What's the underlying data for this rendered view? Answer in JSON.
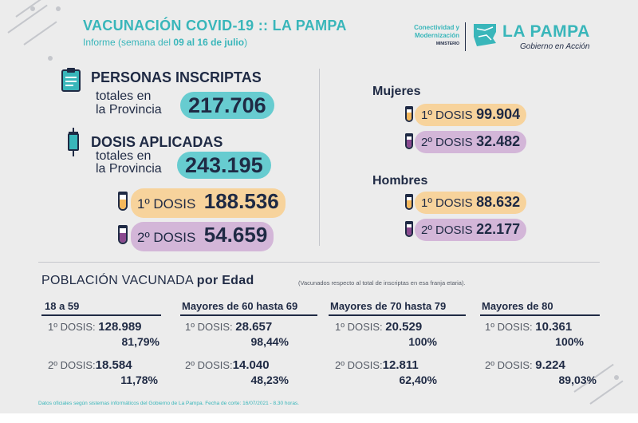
{
  "header": {
    "title": "VACUNACIÓN COVID-19 :: LA PAMPA",
    "subtitle_prefix": "Informe (semana del ",
    "subtitle_bold": "09 al 16 de julio",
    "subtitle_suffix": ")"
  },
  "logo": {
    "ministry_line1": "Conectividad y",
    "ministry_line2": "Modernización",
    "ministry_line3": "MINISTERIO",
    "brand": "LA PAMPA",
    "tagline": "Gobierno en Acción"
  },
  "inscriptas": {
    "title": "PERSONAS INSCRIPTAS",
    "line1": "totales en",
    "line2": "la Provincia",
    "value": "217.706"
  },
  "dosis": {
    "title": "DOSIS APLICADAS",
    "line1": "totales en",
    "line2": "la Provincia",
    "value": "243.195",
    "first_label": "1º DOSIS",
    "first_value": "188.536",
    "second_label": "2º DOSIS",
    "second_value": "54.659"
  },
  "mujeres": {
    "title": "Mujeres",
    "first_label": "1º DOSIS",
    "first_value": "99.904",
    "second_label": "2º DOSIS",
    "second_value": "32.482"
  },
  "hombres": {
    "title": "Hombres",
    "first_label": "1º DOSIS",
    "first_value": "88.632",
    "second_label": "2º DOSIS",
    "second_value": "22.177"
  },
  "poblacion": {
    "title_regular": "POBLACIÓN VACUNADA ",
    "title_bold": "por Edad",
    "note": "(Vacunados respecto al total de inscriptas en esa franja etaria).",
    "groups": [
      {
        "name": "18 a 59",
        "d1_label": "1º DOSIS:",
        "d1_value": "128.989",
        "d1_pct": "81,79%",
        "d2_label": "2º DOSIS:",
        "d2_value": "18.584",
        "d2_pct": "11,78%"
      },
      {
        "name": "Mayores de 60 hasta 69",
        "d1_label": "1º DOSIS:",
        "d1_value": "28.657",
        "d1_pct": "98,44%",
        "d2_label": "2º DOSIS:",
        "d2_value": "14.040",
        "d2_pct": "48,23%"
      },
      {
        "name": "Mayores de 70 hasta 79",
        "d1_label": "1º DOSIS:",
        "d1_value": "20.529",
        "d1_pct": "100%",
        "d2_label": "2º DOSIS:",
        "d2_value": "12.811",
        "d2_pct": "62,40%"
      },
      {
        "name": "Mayores de 80",
        "d1_label": "1º DOSIS:",
        "d1_value": "10.361",
        "d1_pct": "100%",
        "d2_label": "2º DOSIS:",
        "d2_value": "9.224",
        "d2_pct": "89,03%"
      }
    ]
  },
  "footer": {
    "note": "Datos oficiales según sistemas informáticos del Gobierno de La Pampa. Fecha de corte: 16/07/2021 - 8.30 horas."
  },
  "colors": {
    "teal": "#39b6ba",
    "navy": "#1f2a44",
    "first_dose": "#f7d39c",
    "second_dose": "#d3b6d8",
    "panel": "#ececec"
  }
}
